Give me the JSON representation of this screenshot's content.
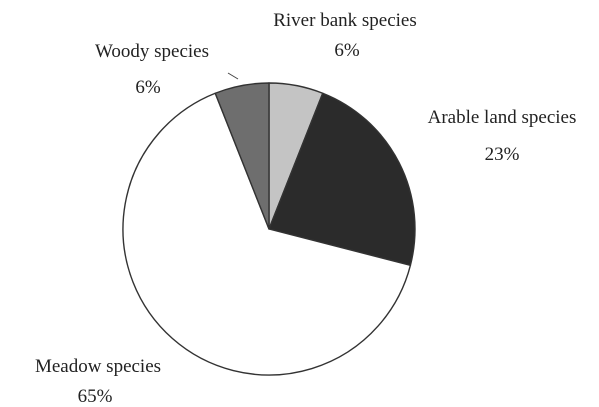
{
  "chart_data": {
    "type": "pie",
    "title": "",
    "slices": [
      {
        "label": "River bank species",
        "value": 6,
        "value_label": "6%",
        "color": "#c4c4c4"
      },
      {
        "label": "Arable land species",
        "value": 23,
        "value_label": "23%",
        "color": "#2b2b2b"
      },
      {
        "label": "Meadow species",
        "value": 65,
        "value_label": "65%",
        "color": "#ffffff"
      },
      {
        "label": "Woody species",
        "value": 6,
        "value_label": "6%",
        "color": "#6e6e6e"
      }
    ],
    "start_angle_deg": 0,
    "direction": "clockwise",
    "legend": "none",
    "labels": "outside"
  },
  "labels": {
    "river_name": "River bank species",
    "river_pct": "6%",
    "arable_name": "Arable land species",
    "arable_pct": "23%",
    "meadow_name": "Meadow species",
    "meadow_pct": "65%",
    "woody_name": "Woody species",
    "woody_pct": "6%"
  }
}
